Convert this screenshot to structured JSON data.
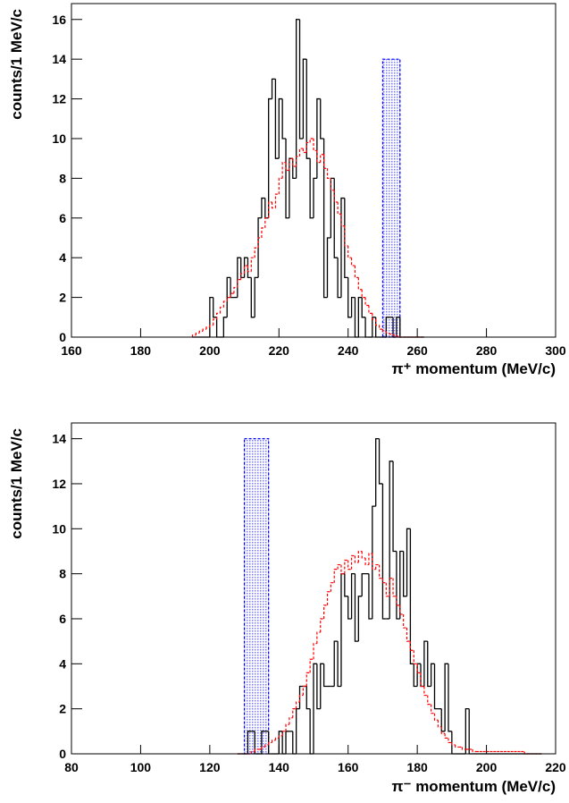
{
  "chart_data": [
    {
      "type": "histogram",
      "x_label": "π⁺ momentum (MeV/c)",
      "y_label": "counts/1 MeV/c",
      "xlim": [
        160,
        300
      ],
      "xticks": [
        160,
        180,
        200,
        220,
        240,
        260,
        280,
        300
      ],
      "ylim": [
        0,
        16.8
      ],
      "yticks": [
        0,
        2,
        4,
        6,
        8,
        10,
        12,
        14,
        16
      ],
      "bins": [
        195,
        196,
        197,
        198,
        199,
        200,
        201,
        202,
        203,
        204,
        205,
        206,
        207,
        208,
        209,
        210,
        211,
        212,
        213,
        214,
        215,
        216,
        217,
        218,
        219,
        220,
        221,
        222,
        223,
        224,
        225,
        226,
        227,
        228,
        229,
        230,
        231,
        232,
        233,
        234,
        235,
        236,
        237,
        238,
        239,
        240,
        241,
        242,
        243,
        244,
        245,
        246,
        247,
        248,
        249,
        250,
        251,
        252,
        253,
        254,
        255,
        256,
        257,
        258,
        259,
        260,
        261,
        262
      ],
      "series": [
        {
          "color": "#000000",
          "line_style": "solid",
          "values": [
            0,
            0,
            0,
            0,
            0,
            2,
            1,
            0,
            0,
            1,
            3,
            2,
            2,
            4,
            3,
            4,
            3,
            1,
            3,
            6,
            7,
            6,
            12,
            13,
            9,
            12,
            10,
            6,
            9,
            8,
            16,
            10,
            14,
            9,
            6,
            8,
            12,
            10,
            2,
            5,
            8,
            4,
            2,
            7,
            3,
            1,
            2,
            0,
            2,
            1,
            0,
            0,
            1,
            0,
            0,
            0,
            1,
            1,
            0,
            1,
            0,
            0,
            0,
            0,
            0,
            0,
            0
          ]
        },
        {
          "color": "#ff0000",
          "line_style": "dashed",
          "values": [
            0.1,
            0.2,
            0.3,
            0.4,
            0.5,
            0.6,
            0.9,
            1.2,
            1.5,
            1.8,
            2.0,
            2.2,
            2.5,
            2.9,
            3.2,
            3.6,
            3.3,
            4.0,
            4.5,
            5.0,
            5.5,
            6.0,
            6.8,
            6.5,
            7.2,
            8.0,
            8.8,
            8.4,
            9.0,
            8.6,
            9.1,
            9.5,
            9.3,
            9.8,
            10.0,
            9.4,
            8.8,
            9.2,
            8.5,
            8.0,
            7.4,
            6.8,
            6.2,
            5.6,
            4.6,
            4.0,
            3.6,
            3.0,
            2.4,
            2.0,
            1.6,
            1.2,
            0.9,
            0.6,
            0.4,
            0.3,
            0.2,
            0.15,
            0.1,
            0.05,
            0,
            0,
            0,
            0,
            0,
            0,
            0
          ]
        }
      ],
      "region": {
        "x": [
          250,
          255
        ],
        "height": 14,
        "color": "#0000ff"
      }
    },
    {
      "type": "histogram",
      "x_label": "π⁻ momentum (MeV/c)",
      "y_label": "counts/1 MeV/c",
      "xlim": [
        80,
        220
      ],
      "xticks": [
        80,
        100,
        120,
        140,
        160,
        180,
        200,
        220
      ],
      "ylim": [
        0,
        14.7
      ],
      "yticks": [
        0,
        2,
        4,
        6,
        8,
        10,
        12,
        14
      ],
      "bins": [
        128,
        129,
        130,
        131,
        132,
        133,
        134,
        135,
        136,
        137,
        138,
        139,
        140,
        141,
        142,
        143,
        144,
        145,
        146,
        147,
        148,
        149,
        150,
        151,
        152,
        153,
        154,
        155,
        156,
        157,
        158,
        159,
        160,
        161,
        162,
        163,
        164,
        165,
        166,
        167,
        168,
        169,
        170,
        171,
        172,
        173,
        174,
        175,
        176,
        177,
        178,
        179,
        180,
        181,
        182,
        183,
        184,
        185,
        186,
        187,
        188,
        189,
        190,
        191,
        192,
        193,
        194,
        195,
        196,
        197,
        198,
        199,
        200,
        201,
        202,
        203,
        204,
        205,
        206,
        207,
        208,
        209,
        210,
        211,
        212,
        213,
        214,
        215,
        216
      ],
      "series": [
        {
          "color": "#000000",
          "line_style": "solid",
          "values": [
            0,
            0,
            0,
            1,
            1,
            0,
            0,
            1,
            1,
            0,
            0,
            0,
            1,
            0,
            1,
            1,
            0,
            2,
            3,
            3,
            2,
            0,
            4,
            2,
            4,
            3,
            3,
            3,
            5,
            3,
            8,
            7,
            6,
            8,
            5,
            7,
            8,
            8,
            6,
            11,
            14,
            12,
            6,
            6,
            13,
            9,
            6,
            9,
            7,
            10,
            4,
            3,
            4,
            3,
            5,
            3,
            4,
            2,
            2,
            1,
            4,
            1,
            0,
            0,
            0,
            0,
            2,
            0,
            0,
            0,
            0,
            0,
            0,
            0,
            0,
            0,
            0,
            0,
            0,
            0,
            0,
            0,
            0,
            0,
            0,
            0,
            0,
            0
          ]
        },
        {
          "color": "#ff0000",
          "line_style": "dashed",
          "values": [
            0,
            0,
            0,
            0,
            0.1,
            0.2,
            0.2,
            0.3,
            0.4,
            0.5,
            0.6,
            0.7,
            0.8,
            1.0,
            1.3,
            1.6,
            2.0,
            2.3,
            2.6,
            3.0,
            3.6,
            4.2,
            4.9,
            5.4,
            6.0,
            6.6,
            7.2,
            7.6,
            8.2,
            8.4,
            8.0,
            8.6,
            8.2,
            8.8,
            8.5,
            9.0,
            8.7,
            8.4,
            8.9,
            8.2,
            8.4,
            7.8,
            7.6,
            7.0,
            7.8,
            7.0,
            6.6,
            6.2,
            5.6,
            5.0,
            4.6,
            4.0,
            3.6,
            3.0,
            2.6,
            2.2,
            1.8,
            1.5,
            1.2,
            0.9,
            0.7,
            0.5,
            0.4,
            0.3,
            0.3,
            0.2,
            0.2,
            0.2,
            0.1,
            0.1,
            0.1,
            0.1,
            0.1,
            0.1,
            0.1,
            0.1,
            0.1,
            0.1,
            0.1,
            0.1,
            0.1,
            0.1,
            0.1,
            0,
            0,
            0,
            0,
            0
          ]
        }
      ],
      "region": {
        "x": [
          130,
          137
        ],
        "height": 14,
        "color": "#0000ff"
      }
    }
  ]
}
